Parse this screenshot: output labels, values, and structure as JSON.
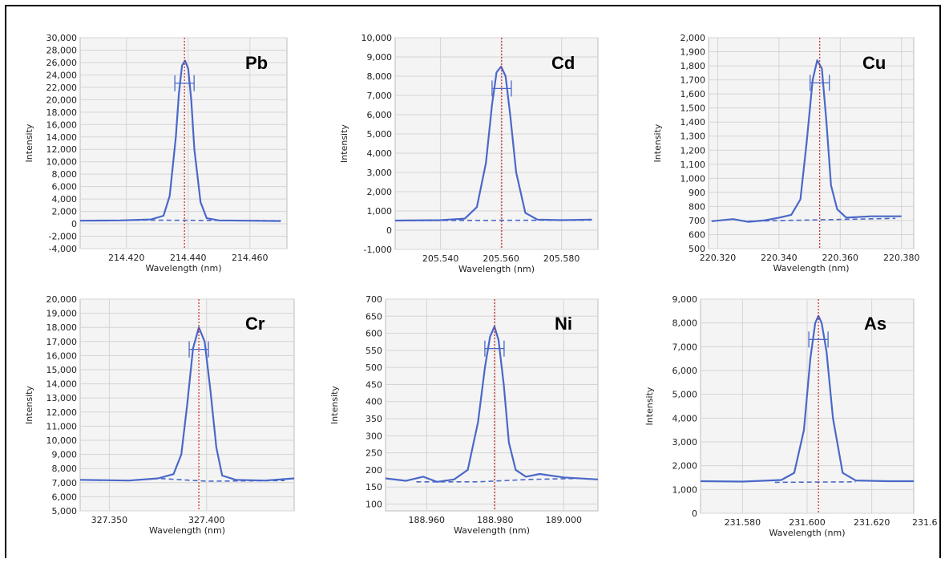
{
  "chart_data": [
    {
      "type": "line",
      "title": "Pb",
      "xlabel": "Wavelength (nm)",
      "ylabel": "Intensity",
      "xlim": [
        214.405,
        214.472
      ],
      "ylim": [
        -4000,
        30000
      ],
      "xticks": [
        214.42,
        214.44,
        214.46
      ],
      "xtick_labels": [
        "214.420",
        "214.440",
        "214.460"
      ],
      "yticks": [
        -4000,
        -2000,
        0,
        2000,
        4000,
        6000,
        8000,
        10000,
        12000,
        14000,
        16000,
        18000,
        20000,
        22000,
        24000,
        26000,
        28000,
        30000
      ],
      "ytick_labels": [
        "-4,000",
        "-2,000",
        "0",
        "2,000",
        "4,000",
        "6,000",
        "8,000",
        "10,000",
        "12,000",
        "14,000",
        "16,000",
        "18,000",
        "20,000",
        "22,000",
        "24,000",
        "26,000",
        "28,000",
        "30,000"
      ],
      "peak_marker_x": 214.4388,
      "series": [
        {
          "style": "solid",
          "x": [
            214.405,
            214.418,
            214.428,
            214.432,
            214.434,
            214.436,
            214.437,
            214.438,
            214.439,
            214.44,
            214.441,
            214.442,
            214.444,
            214.446,
            214.45,
            214.46,
            214.47
          ],
          "y": [
            500,
            550,
            700,
            1300,
            4500,
            14000,
            21000,
            25500,
            26300,
            25000,
            20000,
            12000,
            3500,
            900,
            550,
            500,
            450
          ]
        },
        {
          "style": "dashed",
          "x": [
            214.42,
            214.47
          ],
          "y": [
            600,
            500
          ]
        }
      ]
    },
    {
      "type": "line",
      "title": "Cd",
      "xlabel": "Wavelength (nm)",
      "ylabel": "Intensity",
      "xlim": [
        205.525,
        205.592
      ],
      "ylim": [
        -1000,
        10000
      ],
      "xticks": [
        205.54,
        205.56,
        205.58
      ],
      "xtick_labels": [
        "205.540",
        "205.560",
        "205.580"
      ],
      "yticks": [
        -1000,
        0,
        1000,
        2000,
        3000,
        4000,
        5000,
        6000,
        7000,
        8000,
        9000,
        10000
      ],
      "ytick_labels": [
        "-1,000",
        "0",
        "1,000",
        "2,000",
        "3,000",
        "4,000",
        "5,000",
        "6,000",
        "7,000",
        "8,000",
        "9,000",
        "10,000"
      ],
      "peak_marker_x": 205.5602,
      "series": [
        {
          "style": "solid",
          "x": [
            205.525,
            205.54,
            205.548,
            205.552,
            205.555,
            205.557,
            205.5585,
            205.56,
            205.5615,
            205.563,
            205.565,
            205.568,
            205.572,
            205.58,
            205.59
          ],
          "y": [
            500,
            520,
            600,
            1200,
            3500,
            6500,
            8200,
            8500,
            8000,
            6000,
            3000,
            900,
            550,
            520,
            550
          ]
        },
        {
          "style": "dashed",
          "x": [
            205.525,
            205.59
          ],
          "y": [
            500,
            520
          ]
        }
      ]
    },
    {
      "type": "line",
      "title": "Cu",
      "xlabel": "Wavelength (nm)",
      "ylabel": "Intensity",
      "xlim": [
        220.317,
        220.384
      ],
      "ylim": [
        500,
        2000
      ],
      "xticks": [
        220.32,
        220.34,
        220.36,
        220.38
      ],
      "xtick_labels": [
        "220.320",
        "220.340",
        "220.360",
        "220.380"
      ],
      "yticks": [
        500,
        600,
        700,
        800,
        900,
        1000,
        1100,
        1200,
        1300,
        1400,
        1500,
        1600,
        1700,
        1800,
        1900,
        2000
      ],
      "ytick_labels": [
        "500",
        "600",
        "700",
        "800",
        "900",
        "1,000",
        "1,100",
        "1,200",
        "1,300",
        "1,400",
        "1,500",
        "1,600",
        "1,700",
        "1,800",
        "1,900",
        "2,000"
      ],
      "peak_marker_x": 220.3533,
      "series": [
        {
          "style": "solid",
          "x": [
            220.318,
            220.325,
            220.33,
            220.335,
            220.34,
            220.344,
            220.347,
            220.349,
            220.351,
            220.3525,
            220.354,
            220.3555,
            220.357,
            220.359,
            220.362,
            220.37,
            220.38
          ],
          "y": [
            695,
            710,
            690,
            700,
            720,
            740,
            850,
            1250,
            1700,
            1840,
            1780,
            1400,
            950,
            780,
            720,
            730,
            730
          ]
        },
        {
          "style": "dashed",
          "x": [
            220.33,
            220.378
          ],
          "y": [
            695,
            715
          ]
        }
      ]
    },
    {
      "type": "line",
      "title": "Cr",
      "xlabel": "Wavelength (nm)",
      "ylabel": "Intensity",
      "xlim": [
        327.335,
        327.445
      ],
      "ylim": [
        5000,
        20000
      ],
      "xticks": [
        327.35,
        327.4
      ],
      "xtick_labels": [
        "327.350",
        "327.400"
      ],
      "yticks": [
        5000,
        6000,
        7000,
        8000,
        9000,
        10000,
        11000,
        12000,
        13000,
        14000,
        15000,
        16000,
        17000,
        18000,
        19000,
        20000
      ],
      "ytick_labels": [
        "5,000",
        "6,000",
        "7,000",
        "8,000",
        "9,000",
        "10,000",
        "11,000",
        "12,000",
        "13,000",
        "14,000",
        "15,000",
        "16,000",
        "17,000",
        "18,000",
        "19,000",
        "20,000"
      ],
      "peak_marker_x": 327.396,
      "series": [
        {
          "style": "solid",
          "x": [
            327.335,
            327.36,
            327.375,
            327.383,
            327.387,
            327.39,
            327.393,
            327.396,
            327.399,
            327.402,
            327.405,
            327.408,
            327.415,
            327.43,
            327.445
          ],
          "y": [
            7200,
            7150,
            7300,
            7600,
            9000,
            12500,
            16500,
            18000,
            17000,
            13500,
            9500,
            7500,
            7200,
            7150,
            7300
          ]
        },
        {
          "style": "dashed",
          "x": [
            327.36,
            327.375,
            327.4,
            327.44
          ],
          "y": [
            7150,
            7300,
            7100,
            7150
          ]
        }
      ]
    },
    {
      "type": "line",
      "title": "Ni",
      "xlabel": "Wavelength (nm)",
      "ylabel": "Intensity",
      "xlim": [
        188.948,
        189.01
      ],
      "ylim": [
        80,
        700
      ],
      "xticks": [
        188.96,
        188.98,
        189.0
      ],
      "xtick_labels": [
        "188.960",
        "188.980",
        "189.000"
      ],
      "yticks": [
        100,
        150,
        200,
        250,
        300,
        350,
        400,
        450,
        500,
        550,
        600,
        650,
        700
      ],
      "ytick_labels": [
        "100",
        "150",
        "200",
        "250",
        "300",
        "350",
        "400",
        "450",
        "500",
        "550",
        "600",
        "650",
        "700"
      ],
      "peak_marker_x": 188.9798,
      "series": [
        {
          "style": "solid",
          "x": [
            188.948,
            188.954,
            188.959,
            188.963,
            188.968,
            188.972,
            188.975,
            188.977,
            188.9785,
            188.9798,
            188.981,
            188.9825,
            188.984,
            188.986,
            188.989,
            188.993,
            189.0,
            189.01
          ],
          "y": [
            175,
            168,
            180,
            165,
            172,
            200,
            340,
            500,
            590,
            620,
            580,
            450,
            280,
            200,
            180,
            188,
            178,
            172
          ]
        },
        {
          "style": "dashed",
          "x": [
            188.957,
            188.975,
            188.99,
            189.005
          ],
          "y": [
            165,
            165,
            172,
            175
          ]
        }
      ]
    },
    {
      "type": "line",
      "title": "As",
      "xlabel": "Wavelength (nm)",
      "ylabel": "Intensity",
      "xlim": [
        231.567,
        231.633
      ],
      "ylim": [
        0,
        9000
      ],
      "xticks": [
        231.58,
        231.6,
        231.62
      ],
      "xtick_labels": [
        "231.580",
        "231.600",
        "231.620"
      ],
      "extra_tick_label": "231.6",
      "yticks": [
        0,
        1000,
        2000,
        3000,
        4000,
        5000,
        6000,
        7000,
        8000,
        9000
      ],
      "ytick_labels": [
        "0",
        "1,000",
        "2,000",
        "3,000",
        "4,000",
        "5,000",
        "6,000",
        "7,000",
        "8,000",
        "9,000"
      ],
      "peak_marker_x": 231.6035,
      "series": [
        {
          "style": "solid",
          "x": [
            231.567,
            231.58,
            231.592,
            231.596,
            231.599,
            231.601,
            231.6025,
            231.6035,
            231.6045,
            231.606,
            231.608,
            231.611,
            231.615,
            231.625,
            231.633
          ],
          "y": [
            1350,
            1330,
            1400,
            1700,
            3500,
            6500,
            8000,
            8300,
            8000,
            6800,
            4000,
            1700,
            1380,
            1350,
            1350
          ]
        },
        {
          "style": "dashed",
          "x": [
            231.59,
            231.615
          ],
          "y": [
            1300,
            1320
          ]
        }
      ]
    }
  ],
  "colors": {
    "line": "#4a68c8",
    "marker": "#cc2222",
    "grid": "#d4d4d4",
    "plot_bg": "#f4f4f4"
  }
}
